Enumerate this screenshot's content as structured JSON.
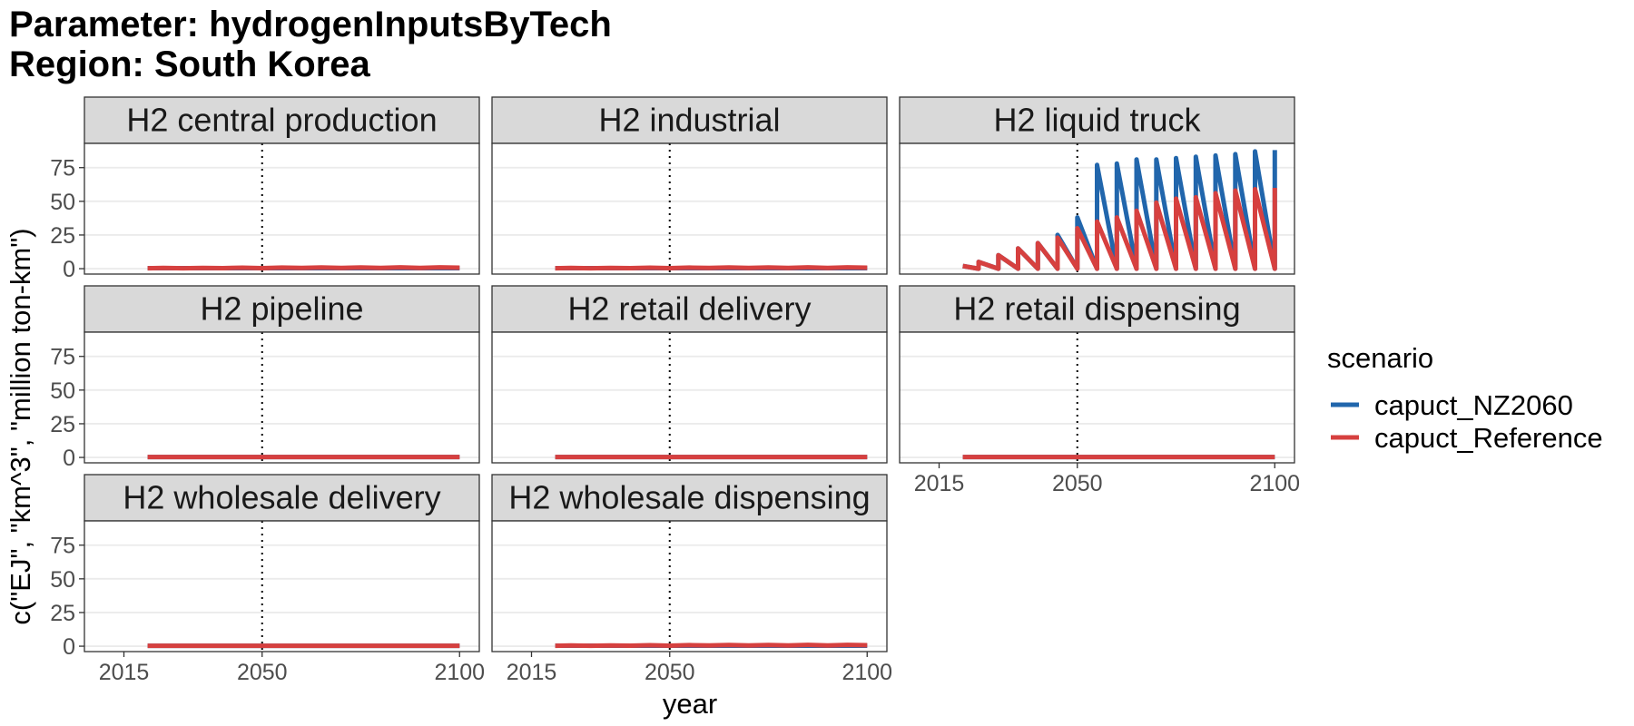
{
  "chart_data": {
    "type": "line",
    "title": "Parameter: hydrogenInputsByTech",
    "subtitle": "Region: South Korea",
    "xlabel": "year",
    "ylabel": "c(\"EJ\", \"km^3\", \"million ton-km\")",
    "xlim": [
      2005,
      2105
    ],
    "ylim": [
      -4,
      93
    ],
    "x_ticks": [
      2015,
      2050,
      2100
    ],
    "y_ticks": [
      0,
      25,
      50,
      75
    ],
    "reference_line": {
      "x": 2050,
      "style": "dotted"
    },
    "grid": true,
    "legend": {
      "title": "scenario",
      "position": "right",
      "entries": [
        {
          "label": "capuct_NZ2060",
          "color": "#2166ac"
        },
        {
          "label": "capuct_Reference",
          "color": "#d6403f"
        }
      ]
    },
    "facets": [
      {
        "label": "H2 central production",
        "series": [
          {
            "name": "capuct_NZ2060",
            "x": [
              2021,
              2100
            ],
            "y": [
              0.4,
              0.4
            ]
          },
          {
            "name": "capuct_Reference",
            "x": [
              2021,
              2025,
              2030,
              2035,
              2040,
              2045,
              2050,
              2055,
              2060,
              2065,
              2070,
              2075,
              2080,
              2085,
              2090,
              2095,
              2100
            ],
            "y": [
              0.3,
              0.5,
              0.3,
              0.6,
              0.4,
              0.7,
              0.4,
              0.8,
              0.5,
              0.9,
              0.5,
              0.9,
              0.6,
              1.0,
              0.6,
              1.0,
              0.7
            ]
          }
        ]
      },
      {
        "label": "H2 industrial",
        "series": [
          {
            "name": "capuct_NZ2060",
            "x": [
              2021,
              2100
            ],
            "y": [
              0.4,
              0.4
            ]
          },
          {
            "name": "capuct_Reference",
            "x": [
              2021,
              2025,
              2030,
              2035,
              2040,
              2045,
              2050,
              2055,
              2060,
              2065,
              2070,
              2075,
              2080,
              2085,
              2090,
              2095,
              2100
            ],
            "y": [
              0.3,
              0.5,
              0.3,
              0.6,
              0.4,
              0.7,
              0.4,
              0.8,
              0.5,
              0.9,
              0.5,
              0.9,
              0.6,
              1.0,
              0.6,
              1.0,
              0.7
            ]
          }
        ]
      },
      {
        "label": "H2 liquid truck",
        "series": [
          {
            "name": "capuct_NZ2060",
            "x": [
              2021,
              2025,
              2025,
              2030,
              2030,
              2035,
              2035,
              2040,
              2040,
              2045,
              2045,
              2050,
              2050,
              2055,
              2055,
              2060,
              2060,
              2065,
              2065,
              2070,
              2070,
              2075,
              2075,
              2080,
              2080,
              2085,
              2085,
              2090,
              2090,
              2095,
              2095,
              2100,
              2100
            ],
            "y": [
              2,
              0,
              5,
              0,
              10,
              0,
              15,
              0,
              19,
              0,
              25,
              0,
              38,
              0,
              77,
              0,
              78,
              0,
              81,
              0,
              81,
              0,
              82,
              0,
              83,
              0,
              84,
              0,
              85,
              0,
              87,
              0,
              88
            ]
          },
          {
            "name": "capuct_Reference",
            "x": [
              2021,
              2025,
              2025,
              2030,
              2030,
              2035,
              2035,
              2040,
              2040,
              2045,
              2045,
              2050,
              2050,
              2055,
              2055,
              2060,
              2060,
              2065,
              2065,
              2070,
              2070,
              2075,
              2075,
              2080,
              2080,
              2085,
              2085,
              2090,
              2090,
              2095,
              2095,
              2100,
              2100
            ],
            "y": [
              2,
              0,
              5,
              0,
              10,
              0,
              15,
              0,
              19,
              0,
              23,
              0,
              30,
              0,
              35,
              0,
              38,
              0,
              43,
              0,
              49,
              0,
              52,
              0,
              53,
              0,
              56,
              0,
              58,
              0,
              59,
              0,
              60
            ]
          }
        ]
      },
      {
        "label": "H2 pipeline",
        "series": [
          {
            "name": "capuct_NZ2060",
            "x": [
              2021,
              2100
            ],
            "y": [
              0.3,
              0.3
            ]
          },
          {
            "name": "capuct_Reference",
            "x": [
              2021,
              2100
            ],
            "y": [
              0.3,
              0.3
            ]
          }
        ]
      },
      {
        "label": "H2 retail delivery",
        "series": [
          {
            "name": "capuct_NZ2060",
            "x": [
              2021,
              2100
            ],
            "y": [
              0.3,
              0.3
            ]
          },
          {
            "name": "capuct_Reference",
            "x": [
              2021,
              2100
            ],
            "y": [
              0.3,
              0.3
            ]
          }
        ]
      },
      {
        "label": "H2 retail dispensing",
        "series": [
          {
            "name": "capuct_NZ2060",
            "x": [
              2021,
              2100
            ],
            "y": [
              0.3,
              0.3
            ]
          },
          {
            "name": "capuct_Reference",
            "x": [
              2021,
              2100
            ],
            "y": [
              0.3,
              0.3
            ]
          }
        ]
      },
      {
        "label": "H2 wholesale delivery",
        "series": [
          {
            "name": "capuct_NZ2060",
            "x": [
              2021,
              2100
            ],
            "y": [
              0.3,
              0.3
            ]
          },
          {
            "name": "capuct_Reference",
            "x": [
              2021,
              2100
            ],
            "y": [
              0.3,
              0.3
            ]
          }
        ]
      },
      {
        "label": "H2 wholesale dispensing",
        "series": [
          {
            "name": "capuct_NZ2060",
            "x": [
              2021,
              2100
            ],
            "y": [
              0.4,
              0.4
            ]
          },
          {
            "name": "capuct_Reference",
            "x": [
              2021,
              2025,
              2030,
              2035,
              2040,
              2045,
              2050,
              2055,
              2060,
              2065,
              2070,
              2075,
              2080,
              2085,
              2090,
              2095,
              2100
            ],
            "y": [
              0.3,
              0.5,
              0.3,
              0.6,
              0.4,
              0.7,
              0.4,
              0.8,
              0.5,
              0.9,
              0.5,
              0.9,
              0.6,
              1.0,
              0.6,
              1.0,
              0.7
            ]
          }
        ]
      }
    ]
  }
}
